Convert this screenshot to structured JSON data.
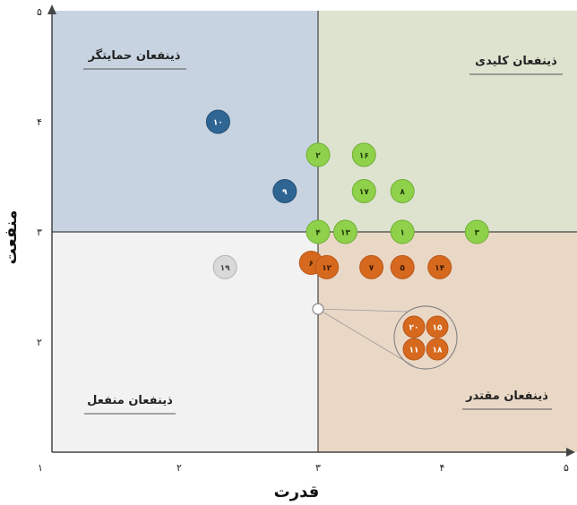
{
  "chart_data": {
    "type": "scatter",
    "xlabel": "قدرت",
    "ylabel": "منفعت",
    "xlim": [
      1,
      5
    ],
    "ylim": [
      1,
      5
    ],
    "x_tick_labels": [
      "۱",
      "۲",
      "۳",
      "۴",
      "۵"
    ],
    "y_tick_labels": [
      "۲",
      "۳",
      "۴",
      "۵"
    ],
    "divider": {
      "x": 3,
      "y": 3
    },
    "quadrants": [
      {
        "name": "ذینفعان حمایتگر",
        "position": "top-left",
        "color": "#c7d3e0"
      },
      {
        "name": "ذینفعان کلیدی",
        "position": "top-right",
        "color": "#dde3cf"
      },
      {
        "name": "ذینفعان منفعل",
        "position": "bottom-left",
        "color": "#f2f2f2"
      },
      {
        "name": "ذینفعان مقتدر",
        "position": "bottom-right",
        "color": "#ead8c6"
      }
    ],
    "colors": {
      "green": "#8fd14a",
      "blue": "#2f6593",
      "orange": "#d6691d",
      "gray": "#d9d9d9"
    },
    "points": [
      {
        "label": "۱۰",
        "x": 2.28,
        "y": 4.0,
        "color": "blue"
      },
      {
        "label": "۹",
        "x": 2.76,
        "y": 3.37,
        "color": "blue"
      },
      {
        "label": "۲",
        "x": 3.0,
        "y": 3.7,
        "color": "green"
      },
      {
        "label": "۱۶",
        "x": 3.37,
        "y": 3.7,
        "color": "green"
      },
      {
        "label": "۱۷",
        "x": 3.37,
        "y": 3.37,
        "color": "green"
      },
      {
        "label": "۸",
        "x": 3.68,
        "y": 3.37,
        "color": "green"
      },
      {
        "label": "۴",
        "x": 3.0,
        "y": 3.0,
        "color": "green"
      },
      {
        "label": "۱۳",
        "x": 3.22,
        "y": 3.0,
        "color": "green"
      },
      {
        "label": "۱",
        "x": 3.68,
        "y": 3.0,
        "color": "green"
      },
      {
        "label": "۳",
        "x": 4.28,
        "y": 3.0,
        "color": "green"
      },
      {
        "label": "۶",
        "x": 2.95,
        "y": 2.72,
        "color": "orange"
      },
      {
        "label": "۱۲",
        "x": 3.07,
        "y": 2.68,
        "color": "orange"
      },
      {
        "label": "۷",
        "x": 3.43,
        "y": 2.68,
        "color": "orange"
      },
      {
        "label": "۵",
        "x": 3.68,
        "y": 2.68,
        "color": "orange"
      },
      {
        "label": "۱۴",
        "x": 3.98,
        "y": 2.68,
        "color": "orange"
      },
      {
        "label": "۱۹",
        "x": 2.33,
        "y": 2.68,
        "color": "gray"
      }
    ],
    "callout": {
      "anchor": {
        "x": 3.0,
        "y": 2.3
      },
      "items": [
        {
          "label": "۲۰",
          "color": "orange"
        },
        {
          "label": "۱۵",
          "color": "orange"
        },
        {
          "label": "۱۱",
          "color": "orange"
        },
        {
          "label": "۱۸",
          "color": "orange"
        }
      ]
    }
  }
}
